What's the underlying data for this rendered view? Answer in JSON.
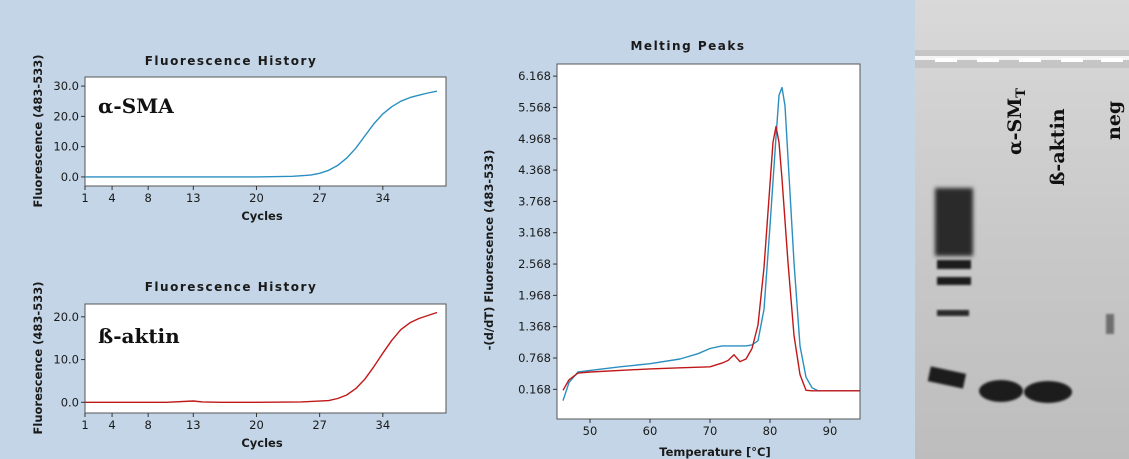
{
  "colors": {
    "panel_background": "#c3d5e6",
    "plot_background": "#ffffff",
    "blue_series": "#2a8fc0",
    "red_series": "#c01818",
    "gel_background": "#cdcdcd",
    "gel_band": "#1e1e1e"
  },
  "chart_data": [
    {
      "type": "line",
      "title": "Fluorescence History",
      "xlabel": "Cycles",
      "ylabel": "Fluorescence (483-533)",
      "annotation": "α-SMA",
      "x_ticks": [
        "1",
        "4",
        "8",
        "13",
        "20",
        "27",
        "34"
      ],
      "y_ticks": [
        "0.0",
        "10.0",
        "20.0",
        "30.0"
      ],
      "xlim": [
        1,
        41
      ],
      "ylim": [
        -3,
        33
      ],
      "series": [
        {
          "color": "#2a8fc0",
          "x": [
            1,
            10,
            20,
            24,
            26,
            27,
            28,
            29,
            30,
            31,
            32,
            33,
            34,
            35,
            36,
            37,
            38,
            39,
            40
          ],
          "y": [
            0,
            0,
            0,
            0.2,
            0.6,
            1.2,
            2.2,
            3.8,
            6.2,
            9.5,
            13.5,
            17.5,
            20.8,
            23.2,
            25,
            26.2,
            27,
            27.7,
            28.3
          ]
        }
      ]
    },
    {
      "type": "line",
      "title": "Fluorescence History",
      "xlabel": "Cycles",
      "ylabel": "Fluorescence (483-533)",
      "annotation": "ß-aktin",
      "x_ticks": [
        "1",
        "4",
        "8",
        "13",
        "20",
        "27",
        "34"
      ],
      "y_ticks": [
        "0.0",
        "10.0",
        "20.0"
      ],
      "xlim": [
        1,
        41
      ],
      "ylim": [
        -2.5,
        23
      ],
      "series": [
        {
          "color": "#c01818",
          "x": [
            1,
            10,
            13,
            14,
            16,
            20,
            25,
            28,
            29,
            30,
            31,
            32,
            33,
            34,
            35,
            36,
            37,
            38,
            39,
            40
          ],
          "y": [
            0,
            0,
            0.3,
            0.1,
            0,
            0,
            0.1,
            0.4,
            0.9,
            1.7,
            3.2,
            5.4,
            8.3,
            11.5,
            14.5,
            17,
            18.6,
            19.6,
            20.3,
            21
          ]
        }
      ]
    },
    {
      "type": "line",
      "title": "Melting Peaks",
      "xlabel": "Temperature [°C]",
      "ylabel": "-(d/dT) Fluorescence (483-533)",
      "x_ticks": [
        "50",
        "60",
        "70",
        "80",
        "90"
      ],
      "y_ticks": [
        "0.168",
        "0.768",
        "1.368",
        "1.968",
        "2.568",
        "3.168",
        "3.768",
        "4.368",
        "4.968",
        "5.568",
        "6.168"
      ],
      "xlim": [
        44.5,
        95
      ],
      "ylim": [
        -0.4,
        6.4
      ],
      "series": [
        {
          "color": "#2a8fc0",
          "x": [
            45.5,
            46.5,
            48,
            50,
            55,
            60,
            65,
            68,
            70,
            72,
            74,
            76,
            77,
            78,
            79,
            80,
            81,
            81.5,
            82,
            82.5,
            83,
            84,
            85,
            86,
            87,
            88,
            90,
            95
          ],
          "y": [
            -0.05,
            0.3,
            0.5,
            0.53,
            0.6,
            0.66,
            0.75,
            0.85,
            0.95,
            1.0,
            1.0,
            1.0,
            1.02,
            1.1,
            1.7,
            3.3,
            5.0,
            5.8,
            5.95,
            5.6,
            4.6,
            2.6,
            1.0,
            0.4,
            0.2,
            0.14,
            0.14,
            0.14
          ]
        },
        {
          "color": "#c01818",
          "x": [
            45.5,
            46.5,
            48,
            50,
            55,
            60,
            65,
            70,
            72,
            73,
            74,
            75,
            76,
            77,
            78,
            79,
            80,
            80.5,
            81,
            81.5,
            82,
            83,
            84,
            85,
            86,
            87,
            88,
            90,
            95
          ],
          "y": [
            0.15,
            0.35,
            0.48,
            0.5,
            0.53,
            0.56,
            0.58,
            0.6,
            0.67,
            0.72,
            0.83,
            0.7,
            0.75,
            0.95,
            1.4,
            2.5,
            4.1,
            4.9,
            5.2,
            4.9,
            4.2,
            2.6,
            1.2,
            0.45,
            0.15,
            0.14,
            0.14,
            0.14,
            0.14
          ]
        }
      ]
    }
  ],
  "gel": {
    "lane_labels": [
      {
        "text": "α-SM",
        "sub": "T"
      },
      {
        "text": "ß-aktin",
        "sub": ""
      },
      {
        "text": "neg",
        "sub": ""
      }
    ]
  }
}
